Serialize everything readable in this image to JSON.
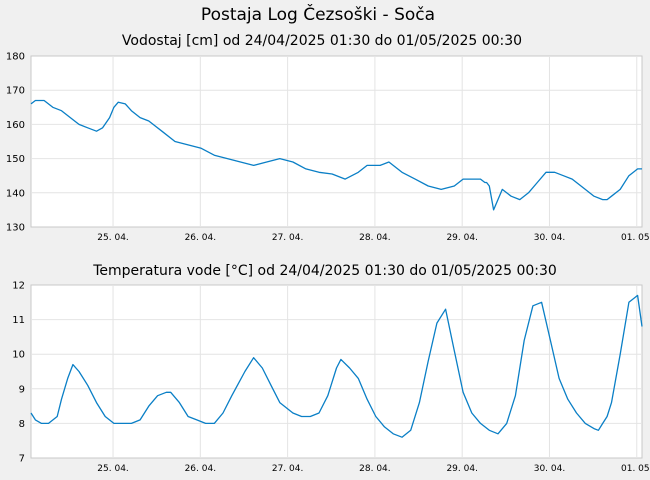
{
  "page_title": "Postaja Log Čezsoški - Soča",
  "chart_data": [
    {
      "type": "line",
      "title": "Vodostaj [cm] od 24/04/2025 01:30 do 01/05/2025 00:30",
      "xlabel": "",
      "ylabel": "",
      "ylim": [
        130,
        180
      ],
      "yticks": [
        130,
        140,
        150,
        160,
        170,
        180
      ],
      "x_range_days": [
        0,
        7
      ],
      "xticks": [
        {
          "label": "25. 04.",
          "day": 0.94
        },
        {
          "label": "26. 04.",
          "day": 1.94
        },
        {
          "label": "27. 04.",
          "day": 2.94
        },
        {
          "label": "28. 04.",
          "day": 3.94
        },
        {
          "label": "29. 04.",
          "day": 4.94
        },
        {
          "label": "30. 04.",
          "day": 5.94
        },
        {
          "label": "01. 05.",
          "day": 6.94
        }
      ],
      "grid": true,
      "line_color": "#0a7fc6",
      "series": [
        {
          "x": [
            0,
            0.05,
            0.15,
            0.25,
            0.35,
            0.45,
            0.55,
            0.65,
            0.75,
            0.82,
            0.9,
            0.95,
            1.0,
            1.08,
            1.15,
            1.25,
            1.35,
            1.5,
            1.65,
            1.8,
            1.95,
            2.1,
            2.25,
            2.4,
            2.55,
            2.7,
            2.85,
            3.0,
            3.15,
            3.3,
            3.45,
            3.6,
            3.75,
            3.85,
            4.0,
            4.1,
            4.25,
            4.4,
            4.55,
            4.7,
            4.85,
            4.95,
            5.05,
            5.15,
            5.2,
            5.22,
            5.25,
            5.3,
            5.4,
            5.5,
            5.6,
            5.7,
            5.8,
            5.9,
            6.0,
            6.1,
            6.2,
            6.35,
            6.45,
            6.55,
            6.6,
            6.65,
            6.75,
            6.85,
            6.95,
            7.0
          ],
          "y": [
            166,
            167,
            167,
            165,
            164,
            162,
            160,
            159,
            158,
            159,
            162,
            165,
            166.5,
            166,
            164,
            162,
            161,
            158,
            155,
            154,
            153,
            151,
            150,
            149,
            148,
            149,
            150,
            149,
            147,
            146,
            145.5,
            144,
            146,
            148,
            148,
            149,
            146,
            144,
            142,
            141,
            142,
            144,
            144,
            144,
            143,
            143,
            142,
            135,
            141,
            139,
            138,
            140,
            143,
            146,
            146,
            145,
            144,
            141,
            139,
            138,
            138,
            139,
            141,
            145,
            147,
            147
          ]
        }
      ]
    },
    {
      "type": "line",
      "title": "Temperatura vode [°C] od 24/04/2025 01:30 do 01/05/2025 00:30",
      "xlabel": "",
      "ylabel": "",
      "ylim": [
        7,
        12
      ],
      "yticks": [
        7,
        8,
        9,
        10,
        11,
        12
      ],
      "x_range_days": [
        0,
        7
      ],
      "xticks": [
        {
          "label": "25. 04.",
          "day": 0.94
        },
        {
          "label": "26. 04.",
          "day": 1.94
        },
        {
          "label": "27. 04.",
          "day": 2.94
        },
        {
          "label": "28. 04.",
          "day": 3.94
        },
        {
          "label": "29. 04.",
          "day": 4.94
        },
        {
          "label": "30. 04.",
          "day": 5.94
        },
        {
          "label": "01. 05.",
          "day": 6.94
        }
      ],
      "grid": true,
      "line_color": "#0a7fc6",
      "series": [
        {
          "x": [
            0,
            0.05,
            0.12,
            0.2,
            0.3,
            0.35,
            0.42,
            0.48,
            0.55,
            0.65,
            0.75,
            0.85,
            0.95,
            1.05,
            1.15,
            1.25,
            1.35,
            1.45,
            1.55,
            1.6,
            1.7,
            1.8,
            1.9,
            2.0,
            2.1,
            2.2,
            2.3,
            2.45,
            2.55,
            2.65,
            2.75,
            2.85,
            3.0,
            3.1,
            3.2,
            3.3,
            3.4,
            3.5,
            3.55,
            3.65,
            3.75,
            3.85,
            3.95,
            4.05,
            4.15,
            4.25,
            4.35,
            4.45,
            4.55,
            4.65,
            4.75,
            4.85,
            4.95,
            5.05,
            5.15,
            5.25,
            5.35,
            5.45,
            5.55,
            5.65,
            5.75,
            5.85,
            5.95,
            6.05,
            6.15,
            6.25,
            6.35,
            6.45,
            6.5,
            6.55,
            6.6,
            6.65,
            6.75,
            6.85,
            6.95,
            7.0
          ],
          "y": [
            8.3,
            8.1,
            8.0,
            8.0,
            8.2,
            8.7,
            9.3,
            9.7,
            9.5,
            9.1,
            8.6,
            8.2,
            8.0,
            8.0,
            8.0,
            8.1,
            8.5,
            8.8,
            8.9,
            8.9,
            8.6,
            8.2,
            8.1,
            8.0,
            8.0,
            8.3,
            8.8,
            9.5,
            9.9,
            9.6,
            9.1,
            8.6,
            8.3,
            8.2,
            8.2,
            8.3,
            8.8,
            9.6,
            9.85,
            9.6,
            9.3,
            8.7,
            8.2,
            7.9,
            7.7,
            7.6,
            7.8,
            8.6,
            9.8,
            10.9,
            11.3,
            10.1,
            8.9,
            8.3,
            8.0,
            7.8,
            7.7,
            8.0,
            8.8,
            10.4,
            11.4,
            11.5,
            10.4,
            9.3,
            8.7,
            8.3,
            8.0,
            7.85,
            7.8,
            8.0,
            8.2,
            8.6,
            10.0,
            11.5,
            11.7,
            10.8
          ]
        }
      ]
    }
  ]
}
